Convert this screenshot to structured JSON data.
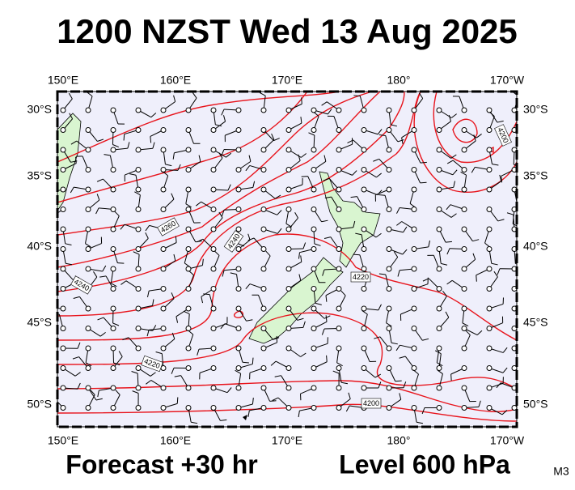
{
  "title": "1200 NZST Wed 13 Aug 2025",
  "longitude_labels": [
    "150°E",
    "160°E",
    "170°E",
    "180°",
    "170°W"
  ],
  "latitude_labels": [
    "30°S",
    "35°S",
    "40°S",
    "45°S",
    "50°S"
  ],
  "contour_labels": [
    4260,
    4240,
    4240,
    4220,
    4220,
    4200,
    4200
  ],
  "footer": {
    "forecast": "Forecast +30 hr",
    "level": "Level 600 hPa",
    "model": "M3"
  }
}
